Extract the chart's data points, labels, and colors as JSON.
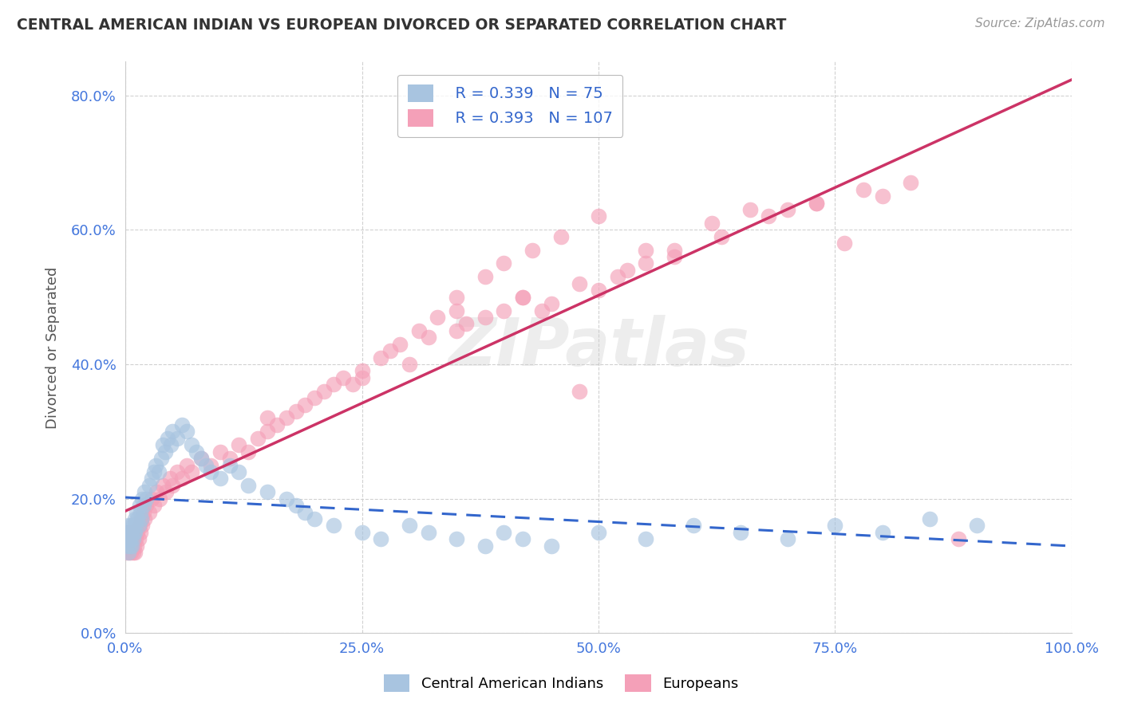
{
  "title": "CENTRAL AMERICAN INDIAN VS EUROPEAN DIVORCED OR SEPARATED CORRELATION CHART",
  "source": "Source: ZipAtlas.com",
  "ylabel": "Divorced or Separated",
  "legend_label_1": "Central American Indians",
  "legend_label_2": "Europeans",
  "R1": 0.339,
  "N1": 75,
  "R2": 0.393,
  "N2": 107,
  "color1": "#a8c4e0",
  "color2": "#f4a0b8",
  "trendline1_color": "#3366cc",
  "trendline2_color": "#cc3366",
  "trendline1_dash": "--",
  "background_color": "#ffffff",
  "grid_color": "#cccccc",
  "xlim": [
    0.0,
    1.0
  ],
  "ylim": [
    0.0,
    0.85
  ],
  "x_ticks": [
    0.0,
    0.25,
    0.5,
    0.75,
    1.0
  ],
  "x_tick_labels": [
    "0.0%",
    "25.0%",
    "50.0%",
    "75.0%",
    "100.0%"
  ],
  "y_ticks": [
    0.0,
    0.2,
    0.4,
    0.6,
    0.8
  ],
  "y_tick_labels": [
    "0.0%",
    "20.0%",
    "40.0%",
    "60.0%",
    "80.0%"
  ],
  "blue_x": [
    0.001,
    0.002,
    0.002,
    0.003,
    0.003,
    0.004,
    0.005,
    0.005,
    0.006,
    0.006,
    0.007,
    0.007,
    0.008,
    0.008,
    0.009,
    0.01,
    0.01,
    0.011,
    0.012,
    0.013,
    0.014,
    0.015,
    0.016,
    0.017,
    0.018,
    0.019,
    0.02,
    0.022,
    0.025,
    0.028,
    0.03,
    0.032,
    0.035,
    0.038,
    0.04,
    0.042,
    0.045,
    0.048,
    0.05,
    0.055,
    0.06,
    0.065,
    0.07,
    0.075,
    0.08,
    0.085,
    0.09,
    0.1,
    0.11,
    0.12,
    0.13,
    0.15,
    0.17,
    0.18,
    0.19,
    0.2,
    0.22,
    0.25,
    0.27,
    0.3,
    0.32,
    0.35,
    0.38,
    0.4,
    0.42,
    0.45,
    0.5,
    0.55,
    0.6,
    0.65,
    0.7,
    0.75,
    0.8,
    0.85,
    0.9
  ],
  "blue_y": [
    0.14,
    0.15,
    0.13,
    0.16,
    0.12,
    0.14,
    0.15,
    0.13,
    0.14,
    0.16,
    0.15,
    0.13,
    0.16,
    0.14,
    0.15,
    0.17,
    0.15,
    0.16,
    0.18,
    0.17,
    0.16,
    0.19,
    0.18,
    0.17,
    0.2,
    0.19,
    0.21,
    0.2,
    0.22,
    0.23,
    0.24,
    0.25,
    0.24,
    0.26,
    0.28,
    0.27,
    0.29,
    0.28,
    0.3,
    0.29,
    0.31,
    0.3,
    0.28,
    0.27,
    0.26,
    0.25,
    0.24,
    0.23,
    0.25,
    0.24,
    0.22,
    0.21,
    0.2,
    0.19,
    0.18,
    0.17,
    0.16,
    0.15,
    0.14,
    0.16,
    0.15,
    0.14,
    0.13,
    0.15,
    0.14,
    0.13,
    0.15,
    0.14,
    0.16,
    0.15,
    0.14,
    0.16,
    0.15,
    0.17,
    0.16
  ],
  "pink_x": [
    0.001,
    0.001,
    0.002,
    0.002,
    0.003,
    0.003,
    0.004,
    0.004,
    0.005,
    0.005,
    0.006,
    0.006,
    0.007,
    0.007,
    0.008,
    0.008,
    0.009,
    0.009,
    0.01,
    0.01,
    0.011,
    0.012,
    0.013,
    0.014,
    0.015,
    0.016,
    0.017,
    0.018,
    0.019,
    0.02,
    0.022,
    0.025,
    0.028,
    0.03,
    0.033,
    0.036,
    0.04,
    0.043,
    0.047,
    0.05,
    0.055,
    0.06,
    0.065,
    0.07,
    0.08,
    0.09,
    0.1,
    0.11,
    0.12,
    0.13,
    0.14,
    0.15,
    0.16,
    0.17,
    0.18,
    0.19,
    0.2,
    0.21,
    0.22,
    0.23,
    0.24,
    0.25,
    0.27,
    0.29,
    0.31,
    0.33,
    0.35,
    0.38,
    0.4,
    0.43,
    0.46,
    0.5,
    0.28,
    0.32,
    0.36,
    0.42,
    0.48,
    0.55,
    0.38,
    0.44,
    0.52,
    0.58,
    0.62,
    0.66,
    0.7,
    0.73,
    0.76,
    0.8,
    0.83,
    0.88,
    0.45,
    0.5,
    0.55,
    0.35,
    0.4,
    0.15,
    0.3,
    0.25,
    0.35,
    0.42,
    0.48,
    0.53,
    0.58,
    0.63,
    0.68,
    0.73,
    0.78
  ],
  "pink_y": [
    0.14,
    0.13,
    0.15,
    0.12,
    0.14,
    0.13,
    0.15,
    0.12,
    0.14,
    0.13,
    0.15,
    0.12,
    0.14,
    0.13,
    0.15,
    0.12,
    0.14,
    0.13,
    0.15,
    0.12,
    0.14,
    0.13,
    0.15,
    0.14,
    0.16,
    0.15,
    0.17,
    0.16,
    0.18,
    0.17,
    0.19,
    0.18,
    0.2,
    0.19,
    0.21,
    0.2,
    0.22,
    0.21,
    0.23,
    0.22,
    0.24,
    0.23,
    0.25,
    0.24,
    0.26,
    0.25,
    0.27,
    0.26,
    0.28,
    0.27,
    0.29,
    0.3,
    0.31,
    0.32,
    0.33,
    0.34,
    0.35,
    0.36,
    0.37,
    0.38,
    0.37,
    0.39,
    0.41,
    0.43,
    0.45,
    0.47,
    0.5,
    0.53,
    0.55,
    0.57,
    0.59,
    0.62,
    0.42,
    0.44,
    0.46,
    0.5,
    0.36,
    0.55,
    0.47,
    0.48,
    0.53,
    0.57,
    0.61,
    0.63,
    0.63,
    0.64,
    0.58,
    0.65,
    0.67,
    0.14,
    0.49,
    0.51,
    0.57,
    0.45,
    0.48,
    0.32,
    0.4,
    0.38,
    0.48,
    0.5,
    0.52,
    0.54,
    0.56,
    0.59,
    0.62,
    0.64,
    0.66
  ]
}
